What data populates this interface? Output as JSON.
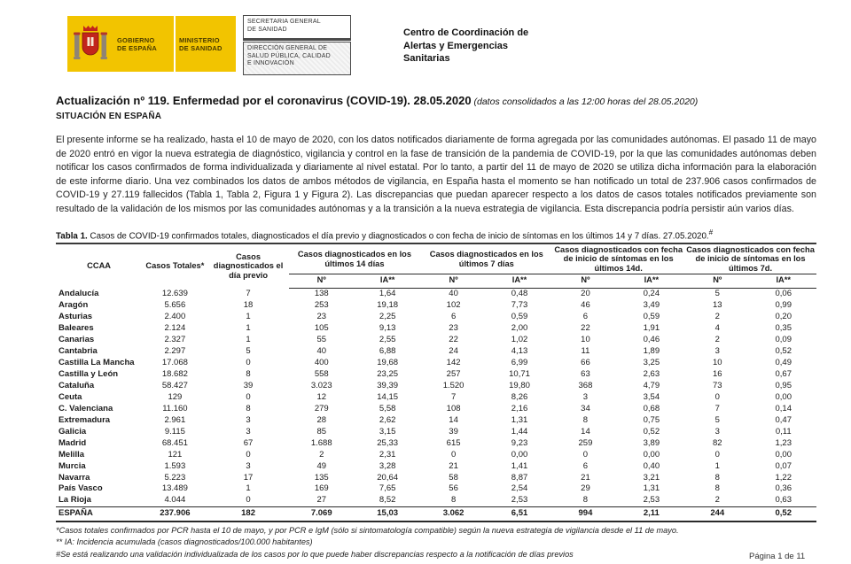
{
  "header": {
    "logo": {
      "gobierno": "GOBIERNO\nDE ESPAÑA",
      "ministerio": "MINISTERIO\nDE SANIDAD"
    },
    "dept_boxes": [
      "SECRETARIA GENERAL\nDE SANIDAD",
      "DIRECCIÓN GENERAL DE\nSALUD PÚBLICA, CALIDAD\nE INNOVACIÓN"
    ],
    "agency": "Centro de Coordinación de\nAlertas y Emergencias\nSanitarias"
  },
  "document": {
    "title": "Actualización nº 119. Enfermedad por el coronavirus (COVID-19). 28.05.2020",
    "title_note": " (datos consolidados a las 12:00 horas del 28.05.2020)",
    "section": "SITUACIÓN EN ESPAÑA",
    "intro": "El presente informe se ha realizado, hasta el 10 de mayo de 2020, con los datos notificados diariamente de forma agregada por las comunidades autónomas. El pasado 11 de mayo de 2020 entró en vigor la nueva estrategia de diagnóstico, vigilancia y control en la fase de transición de la pandemia de COVID-19, por la que las comunidades autónomas deben notificar los casos confirmados de forma individualizada y diariamente al nivel estatal. Por lo tanto, a partir del 11 de mayo de 2020 se utiliza dicha información para la elaboración de este informe diario. Una vez combinados los datos de ambos métodos de vigilancia, en España hasta el momento se han notificado un total de 237.906 casos confirmados de COVID-19 y 27.119 fallecidos (Tabla 1, Tabla 2, Figura 1 y Figura 2). Las discrepancias que puedan aparecer respecto a los datos de casos totales notificados previamente son resultado de la validación de los mismos por las comunidades autónomas y a la transición a la nueva estrategia de vigilancia. Esta discrepancia podría persistir aún varios días."
  },
  "table": {
    "caption_bold": "Tabla 1.",
    "caption_text": " Casos de COVID-19 confirmados totales, diagnosticados el día previo y diagnosticados o con fecha de inicio de síntomas en los últimos 14 y 7 días. 27.05.2020.",
    "caption_sup": "#",
    "header": {
      "ccaa": "CCAA",
      "totales": "Casos Totales*",
      "previo": "Casos diagnosticados el día previo",
      "groups": [
        "Casos diagnosticados en los últimos 14 días",
        "Casos diagnosticados en los últimos 7 días",
        "Casos diagnosticados con fecha de inicio de síntomas en los últimos 14d.",
        "Casos diagnosticados con fecha de inicio de síntomas en los últimos 7d."
      ],
      "sub_n": "Nº",
      "sub_ia": "IA**"
    },
    "rows": [
      [
        "Andalucía",
        "12.639",
        "7",
        "138",
        "1,64",
        "40",
        "0,48",
        "20",
        "0,24",
        "5",
        "0,06"
      ],
      [
        "Aragón",
        "5.656",
        "18",
        "253",
        "19,18",
        "102",
        "7,73",
        "46",
        "3,49",
        "13",
        "0,99"
      ],
      [
        "Asturias",
        "2.400",
        "1",
        "23",
        "2,25",
        "6",
        "0,59",
        "6",
        "0,59",
        "2",
        "0,20"
      ],
      [
        "Baleares",
        "2.124",
        "1",
        "105",
        "9,13",
        "23",
        "2,00",
        "22",
        "1,91",
        "4",
        "0,35"
      ],
      [
        "Canarias",
        "2.327",
        "1",
        "55",
        "2,55",
        "22",
        "1,02",
        "10",
        "0,46",
        "2",
        "0,09"
      ],
      [
        "Cantabria",
        "2.297",
        "5",
        "40",
        "6,88",
        "24",
        "4,13",
        "11",
        "1,89",
        "3",
        "0,52"
      ],
      [
        "Castilla La Mancha",
        "17.068",
        "0",
        "400",
        "19,68",
        "142",
        "6,99",
        "66",
        "3,25",
        "10",
        "0,49"
      ],
      [
        "Castilla y León",
        "18.682",
        "8",
        "558",
        "23,25",
        "257",
        "10,71",
        "63",
        "2,63",
        "16",
        "0,67"
      ],
      [
        "Cataluña",
        "58.427",
        "39",
        "3.023",
        "39,39",
        "1.520",
        "19,80",
        "368",
        "4,79",
        "73",
        "0,95"
      ],
      [
        "Ceuta",
        "129",
        "0",
        "12",
        "14,15",
        "7",
        "8,26",
        "3",
        "3,54",
        "0",
        "0,00"
      ],
      [
        "C. Valenciana",
        "11.160",
        "8",
        "279",
        "5,58",
        "108",
        "2,16",
        "34",
        "0,68",
        "7",
        "0,14"
      ],
      [
        "Extremadura",
        "2.961",
        "3",
        "28",
        "2,62",
        "14",
        "1,31",
        "8",
        "0,75",
        "5",
        "0,47"
      ],
      [
        "Galicia",
        "9.115",
        "3",
        "85",
        "3,15",
        "39",
        "1,44",
        "14",
        "0,52",
        "3",
        "0,11"
      ],
      [
        "Madrid",
        "68.451",
        "67",
        "1.688",
        "25,33",
        "615",
        "9,23",
        "259",
        "3,89",
        "82",
        "1,23"
      ],
      [
        "Melilla",
        "121",
        "0",
        "2",
        "2,31",
        "0",
        "0,00",
        "0",
        "0,00",
        "0",
        "0,00"
      ],
      [
        "Murcia",
        "1.593",
        "3",
        "49",
        "3,28",
        "21",
        "1,41",
        "6",
        "0,40",
        "1",
        "0,07"
      ],
      [
        "Navarra",
        "5.223",
        "17",
        "135",
        "20,64",
        "58",
        "8,87",
        "21",
        "3,21",
        "8",
        "1,22"
      ],
      [
        "País Vasco",
        "13.489",
        "1",
        "169",
        "7,65",
        "56",
        "2,54",
        "29",
        "1,31",
        "8",
        "0,36"
      ],
      [
        "La Rioja",
        "4.044",
        "0",
        "27",
        "8,52",
        "8",
        "2,53",
        "8",
        "2,53",
        "2",
        "0,63"
      ]
    ],
    "total_row": [
      "ESPAÑA",
      "237.906",
      "182",
      "7.069",
      "15,03",
      "3.062",
      "6,51",
      "994",
      "2,11",
      "244",
      "0,52"
    ]
  },
  "footnotes": [
    "*Casos totales confirmados por PCR hasta el 10 de mayo, y por PCR e IgM (sólo si sintomatología compatible) según la nueva estrategia de vigilancia desde el 11 de mayo.",
    "** IA: Incidencia acumulada (casos diagnosticados/100.000 habitantes)",
    "#Se está realizando una validación individualizada de los casos por lo que puede haber discrepancias respecto a la notificación de días previos"
  ],
  "footer": {
    "page": "Página 1 de 11"
  }
}
